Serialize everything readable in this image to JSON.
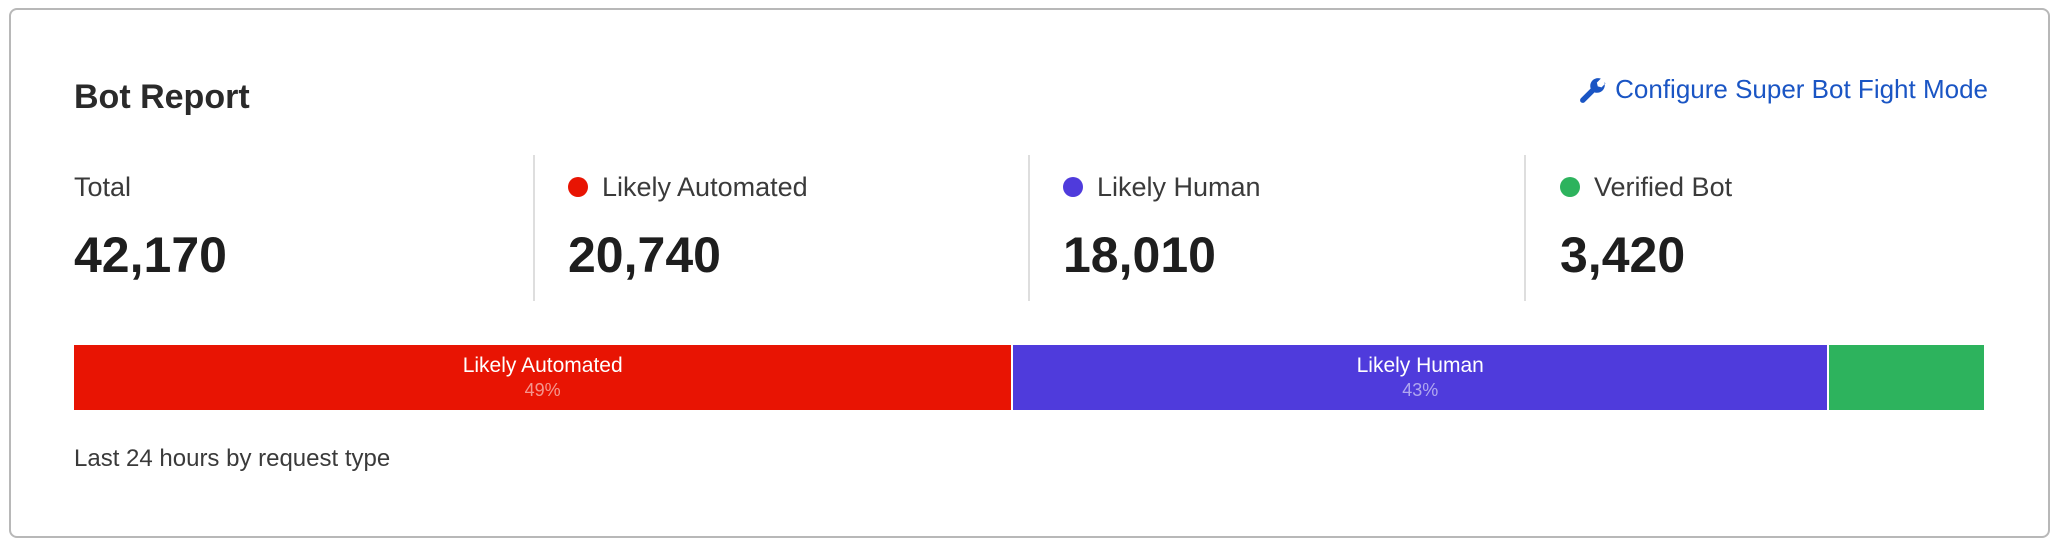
{
  "title": "Bot Report",
  "configure_link": {
    "label": "Configure Super Bot Fight Mode",
    "icon": "wrench-icon",
    "color": "#1a55c4"
  },
  "stats": [
    {
      "label": "Total",
      "value": "42,170",
      "color": null
    },
    {
      "label": "Likely Automated",
      "value": "20,740",
      "color": "#e81403"
    },
    {
      "label": "Likely Human",
      "value": "18,010",
      "color": "#4f3bdc"
    },
    {
      "label": "Verified Bot",
      "value": "3,420",
      "color": "#2db35d"
    }
  ],
  "chart_data": {
    "type": "bar",
    "orientation": "horizontal-stacked-100",
    "categories": [
      "Likely Automated",
      "Likely Human",
      "Verified Bot"
    ],
    "values": [
      20740,
      18010,
      3420
    ],
    "percent_labels": [
      "49%",
      "43%",
      ""
    ],
    "colors": [
      "#e81403",
      "#4f3bdc",
      "#2db35d"
    ],
    "show_label": [
      true,
      true,
      false
    ]
  },
  "footer": "Last 24 hours by request type"
}
